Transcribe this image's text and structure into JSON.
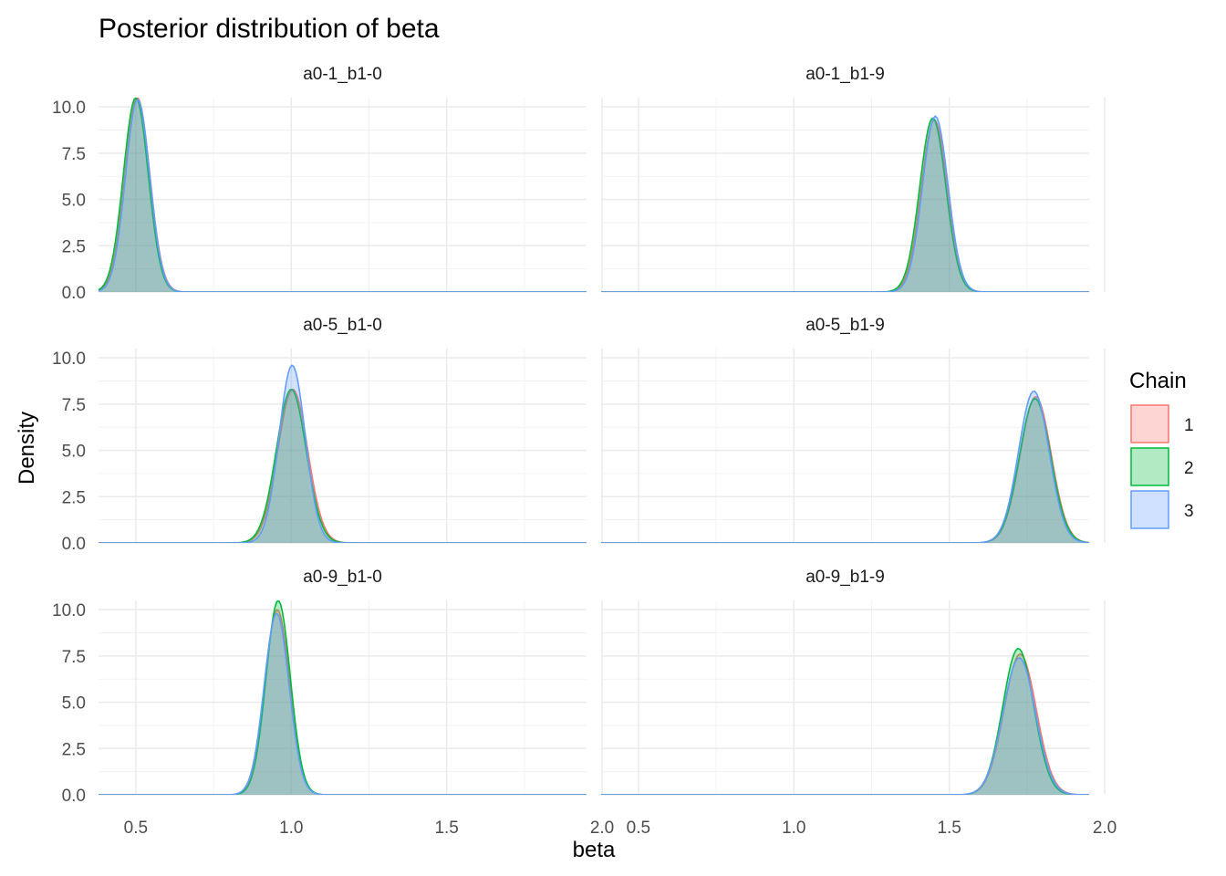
{
  "chart_data": {
    "type": "area",
    "title": "Posterior distribution of beta",
    "xlabel": "beta",
    "ylabel": "Density",
    "xlim": [
      0.38,
      1.95
    ],
    "ylim": [
      0,
      10.5
    ],
    "x_ticks": [
      0.5,
      1.0,
      1.5,
      2.0
    ],
    "x_tick_labels": [
      "0.5",
      "1.0",
      "1.5",
      "2.0"
    ],
    "y_ticks": [
      0,
      2.5,
      5,
      7.5,
      10
    ],
    "y_tick_labels": [
      "0.0",
      "2.5",
      "5.0",
      "7.5",
      "10.0"
    ],
    "grid": true,
    "legend": {
      "title": "Chain",
      "placement": "right",
      "entries": [
        {
          "label": "1",
          "line": "#F8766D",
          "fill": "#F8766D"
        },
        {
          "label": "2",
          "line": "#00BA38",
          "fill": "#00BA38"
        },
        {
          "label": "3",
          "line": "#619CFF",
          "fill": "#619CFF"
        }
      ]
    },
    "series_x_range": [
      0.38,
      1.95
    ],
    "panels": [
      {
        "label": "a0-1_b1-0",
        "series": [
          {
            "name": "1",
            "mean": 0.505,
            "sd": 0.04,
            "peak": 10.5
          },
          {
            "name": "2",
            "mean": 0.5,
            "sd": 0.04,
            "peak": 10.5
          },
          {
            "name": "3",
            "mean": 0.506,
            "sd": 0.039,
            "peak": 10.4
          }
        ]
      },
      {
        "label": "a0-1_b1-9",
        "series": [
          {
            "name": "1",
            "mean": 1.452,
            "sd": 0.042,
            "peak": 9.3
          },
          {
            "name": "2",
            "mean": 1.447,
            "sd": 0.042,
            "peak": 9.4
          },
          {
            "name": "3",
            "mean": 1.455,
            "sd": 0.041,
            "peak": 9.5
          }
        ]
      },
      {
        "label": "a0-5_b1-0",
        "series": [
          {
            "name": "1",
            "mean": 1.005,
            "sd": 0.048,
            "peak": 8.3
          },
          {
            "name": "2",
            "mean": 1.0,
            "sd": 0.048,
            "peak": 8.3
          },
          {
            "name": "3",
            "mean": 1.003,
            "sd": 0.042,
            "peak": 9.6
          }
        ]
      },
      {
        "label": "a0-5_b1-9",
        "series": [
          {
            "name": "1",
            "mean": 1.778,
            "sd": 0.05,
            "peak": 7.9
          },
          {
            "name": "2",
            "mean": 1.776,
            "sd": 0.05,
            "peak": 7.8
          },
          {
            "name": "3",
            "mean": 1.772,
            "sd": 0.049,
            "peak": 8.2
          }
        ]
      },
      {
        "label": "a0-9_b1-0",
        "series": [
          {
            "name": "1",
            "mean": 0.955,
            "sd": 0.04,
            "peak": 10.0
          },
          {
            "name": "2",
            "mean": 0.958,
            "sd": 0.039,
            "peak": 10.5
          },
          {
            "name": "3",
            "mean": 0.953,
            "sd": 0.04,
            "peak": 9.8
          }
        ]
      },
      {
        "label": "a0-9_b1-9",
        "series": [
          {
            "name": "1",
            "mean": 1.728,
            "sd": 0.052,
            "peak": 7.6
          },
          {
            "name": "2",
            "mean": 1.722,
            "sd": 0.05,
            "peak": 7.9
          },
          {
            "name": "3",
            "mean": 1.725,
            "sd": 0.052,
            "peak": 7.4
          }
        ]
      }
    ]
  }
}
